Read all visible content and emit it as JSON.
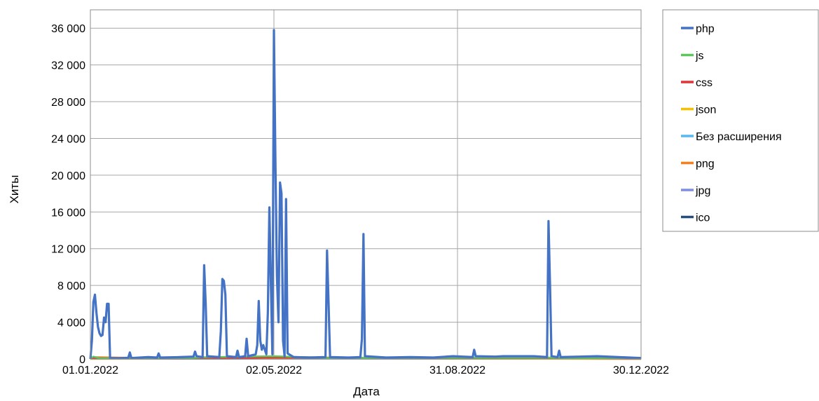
{
  "chart_data": {
    "type": "line",
    "title": "",
    "xlabel": "Дата",
    "ylabel": "Хиты",
    "xlim": [
      "01.01.2022",
      "30.12.2022"
    ],
    "ylim": [
      0,
      38000
    ],
    "grid": true,
    "legend_position": "right",
    "x_ticks": [
      "01.01.2022",
      "02.05.2022",
      "31.08.2022",
      "30.12.2022"
    ],
    "y_ticks": [
      "0",
      "4 000",
      "8 000",
      "12 000",
      "16 000",
      "20 000",
      "24 000",
      "28 000",
      "32 000",
      "36 000"
    ],
    "y_tick_values": [
      0,
      4000,
      8000,
      12000,
      16000,
      20000,
      24000,
      28000,
      32000,
      36000
    ],
    "series": [
      {
        "name": "php",
        "color": "#4472c4",
        "points": [
          [
            "01.01.2022",
            0
          ],
          [
            "02.01.2022",
            2000
          ],
          [
            "03.01.2022",
            6200
          ],
          [
            "04.01.2022",
            7000
          ],
          [
            "05.01.2022",
            5000
          ],
          [
            "06.01.2022",
            3500
          ],
          [
            "07.01.2022",
            2800
          ],
          [
            "08.01.2022",
            2500
          ],
          [
            "09.01.2022",
            2600
          ],
          [
            "10.01.2022",
            4500
          ],
          [
            "11.01.2022",
            4000
          ],
          [
            "12.01.2022",
            6000
          ],
          [
            "13.01.2022",
            6000
          ],
          [
            "14.01.2022",
            100
          ],
          [
            "20.01.2022",
            80
          ],
          [
            "26.01.2022",
            120
          ],
          [
            "27.01.2022",
            700
          ],
          [
            "28.01.2022",
            100
          ],
          [
            "08.02.2022",
            200
          ],
          [
            "14.02.2022",
            150
          ],
          [
            "15.02.2022",
            600
          ],
          [
            "16.02.2022",
            150
          ],
          [
            "01.03.2022",
            200
          ],
          [
            "10.03.2022",
            250
          ],
          [
            "11.03.2022",
            800
          ],
          [
            "12.03.2022",
            300
          ],
          [
            "16.03.2022",
            200
          ],
          [
            "17.03.2022",
            10200
          ],
          [
            "18.03.2022",
            6000
          ],
          [
            "19.03.2022",
            300
          ],
          [
            "27.03.2022",
            200
          ],
          [
            "28.03.2022",
            3000
          ],
          [
            "29.03.2022",
            8700
          ],
          [
            "30.03.2022",
            8500
          ],
          [
            "31.03.2022",
            7000
          ],
          [
            "01.04.2022",
            300
          ],
          [
            "07.04.2022",
            200
          ],
          [
            "08.04.2022",
            900
          ],
          [
            "09.04.2022",
            200
          ],
          [
            "13.04.2022",
            300
          ],
          [
            "14.04.2022",
            2200
          ],
          [
            "15.04.2022",
            300
          ],
          [
            "20.04.2022",
            500
          ],
          [
            "21.04.2022",
            1500
          ],
          [
            "22.04.2022",
            6300
          ],
          [
            "23.04.2022",
            2000
          ],
          [
            "24.04.2022",
            1000
          ],
          [
            "25.04.2022",
            1500
          ],
          [
            "26.04.2022",
            1000
          ],
          [
            "27.04.2022",
            500
          ],
          [
            "28.04.2022",
            5000
          ],
          [
            "29.04.2022",
            16500
          ],
          [
            "30.04.2022",
            8000
          ],
          [
            "01.05.2022",
            500
          ],
          [
            "02.05.2022",
            35800
          ],
          [
            "03.05.2022",
            21000
          ],
          [
            "04.05.2022",
            9000
          ],
          [
            "05.05.2022",
            4000
          ],
          [
            "06.05.2022",
            19200
          ],
          [
            "07.05.2022",
            18000
          ],
          [
            "08.05.2022",
            2000
          ],
          [
            "09.05.2022",
            300
          ],
          [
            "10.05.2022",
            17400
          ],
          [
            "11.05.2022",
            600
          ],
          [
            "15.05.2022",
            200
          ],
          [
            "25.05.2022",
            150
          ],
          [
            "05.06.2022",
            200
          ],
          [
            "06.06.2022",
            11800
          ],
          [
            "07.06.2022",
            6000
          ],
          [
            "08.06.2022",
            200
          ],
          [
            "20.06.2022",
            150
          ],
          [
            "28.06.2022",
            200
          ],
          [
            "29.06.2022",
            2200
          ],
          [
            "30.06.2022",
            13600
          ],
          [
            "01.07.2022",
            300
          ],
          [
            "15.07.2022",
            150
          ],
          [
            "31.07.2022",
            200
          ],
          [
            "15.08.2022",
            150
          ],
          [
            "28.08.2022",
            300
          ],
          [
            "10.09.2022",
            200
          ],
          [
            "11.09.2022",
            1000
          ],
          [
            "12.09.2022",
            300
          ],
          [
            "25.09.2022",
            250
          ],
          [
            "30.09.2022",
            300
          ],
          [
            "10.10.2022",
            300
          ],
          [
            "20.10.2022",
            300
          ],
          [
            "29.10.2022",
            200
          ],
          [
            "30.10.2022",
            15000
          ],
          [
            "31.10.2022",
            8000
          ],
          [
            "01.11.2022",
            300
          ],
          [
            "05.11.2022",
            200
          ],
          [
            "06.11.2022",
            900
          ],
          [
            "07.11.2022",
            200
          ],
          [
            "20.11.2022",
            250
          ],
          [
            "01.12.2022",
            300
          ],
          [
            "15.12.2022",
            200
          ],
          [
            "30.12.2022",
            100
          ]
        ]
      },
      {
        "name": "js",
        "color": "#5cc85c",
        "points": [
          [
            "01.01.2022",
            80
          ],
          [
            "03.01.2022",
            250
          ],
          [
            "07.01.2022",
            100
          ],
          [
            "01.03.2022",
            60
          ],
          [
            "17.03.2022",
            200
          ],
          [
            "02.05.2022",
            300
          ],
          [
            "06.06.2022",
            120
          ],
          [
            "30.10.2022",
            150
          ],
          [
            "30.12.2022",
            40
          ]
        ]
      },
      {
        "name": "css",
        "color": "#e83030",
        "points": [
          [
            "01.01.2022",
            40
          ],
          [
            "03.01.2022",
            120
          ],
          [
            "01.03.2022",
            30
          ],
          [
            "02.05.2022",
            150
          ],
          [
            "30.10.2022",
            80
          ],
          [
            "30.12.2022",
            20
          ]
        ]
      },
      {
        "name": "json",
        "color": "#f5c000",
        "points": [
          [
            "01.01.2022",
            20
          ],
          [
            "02.05.2022",
            60
          ],
          [
            "30.12.2022",
            10
          ]
        ]
      },
      {
        "name": "Без расширения",
        "color": "#57b8ef",
        "points": [
          [
            "01.01.2022",
            20
          ],
          [
            "02.05.2022",
            80
          ],
          [
            "30.12.2022",
            10
          ]
        ]
      },
      {
        "name": "png",
        "color": "#f77f1e",
        "points": [
          [
            "01.01.2022",
            60
          ],
          [
            "05.01.2022",
            200
          ],
          [
            "14.02.2022",
            80
          ],
          [
            "17.03.2022",
            150
          ],
          [
            "02.05.2022",
            250
          ],
          [
            "30.06.2022",
            100
          ],
          [
            "30.12.2022",
            30
          ]
        ]
      },
      {
        "name": "jpg",
        "color": "#7b8de6",
        "points": [
          [
            "01.01.2022",
            30
          ],
          [
            "02.05.2022",
            100
          ],
          [
            "30.12.2022",
            20
          ]
        ]
      },
      {
        "name": "ico",
        "color": "#254f7a",
        "points": [
          [
            "01.01.2022",
            10
          ],
          [
            "02.05.2022",
            40
          ],
          [
            "30.12.2022",
            5
          ]
        ]
      }
    ]
  }
}
